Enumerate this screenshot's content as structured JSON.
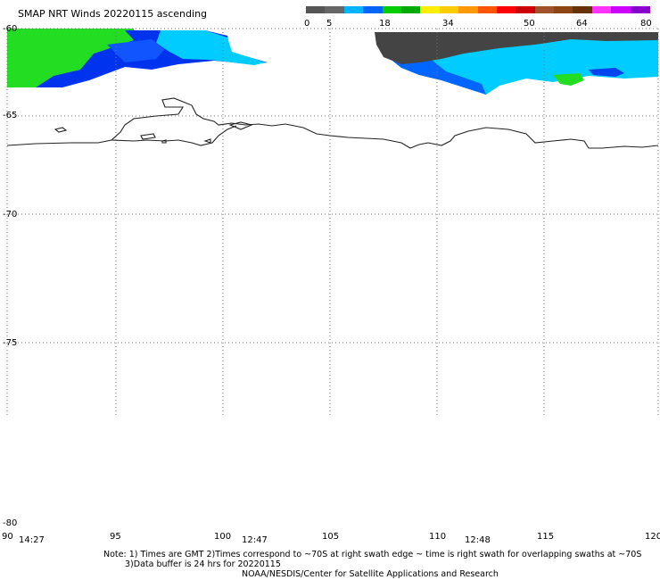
{
  "title": "SMAP NRT Winds 20220115 ascending",
  "colorbar": {
    "labels": [
      "0",
      "5",
      "18",
      "34",
      "50",
      "64",
      "80"
    ],
    "segments": [
      "#555555",
      "#666666",
      "#00b3ff",
      "#0066ff",
      "#00cc00",
      "#00aa00",
      "#ffee00",
      "#ffcc00",
      "#ff9900",
      "#ff5500",
      "#ff0000",
      "#cc0000",
      "#a0522d",
      "#8b4513",
      "#663300",
      "#ff33ff",
      "#cc00ff",
      "#8800cc"
    ]
  },
  "axes": {
    "lat_labels": [
      "-60",
      "-65",
      "-70",
      "-75",
      "-80"
    ],
    "lon_labels": [
      "90",
      "95",
      "100",
      "105",
      "110",
      "115",
      "120"
    ]
  },
  "times": [
    "14:27",
    "12:47",
    "12:48"
  ],
  "notes": {
    "line1": "Note: 1) Times are GMT 2)Times correspond to ~70S at right swath edge ~ time is right swath for overlapping swaths at ~70S",
    "line2": "3)Data buffer is 24 hrs for 20220115",
    "line3": "NOAA/NESDIS/Center for Satellite Applications and Research"
  },
  "colors": {
    "swath_green": "#22dd22",
    "swath_blue": "#0033ee",
    "swath_cyan": "#00ccff",
    "land_dark": "#3a3a3a"
  }
}
